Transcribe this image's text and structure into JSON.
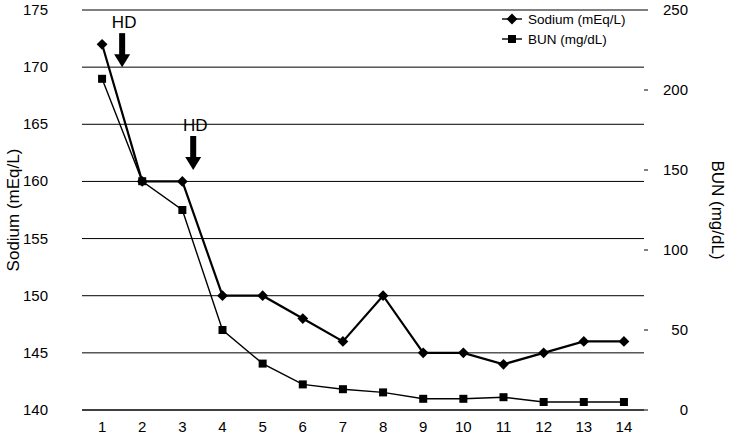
{
  "chart_data": {
    "type": "line",
    "categories": [
      "1",
      "2",
      "3",
      "4",
      "5",
      "6",
      "7",
      "8",
      "9",
      "10",
      "11",
      "12",
      "13",
      "14"
    ],
    "y_label": "Sodium (mEq/L)",
    "y2_label": "BUN (mg/dL)",
    "ylim": [
      140,
      175
    ],
    "yticks": [
      140,
      145,
      150,
      155,
      160,
      165,
      170,
      175
    ],
    "y2lim": [
      0,
      250
    ],
    "y2ticks": [
      0,
      50,
      100,
      150,
      200,
      250
    ],
    "grid": true,
    "legend": "upper right",
    "series": [
      {
        "name": "Sodium (mEq/L)",
        "color": "#000000",
        "marker": "diamond",
        "line_style": "solid",
        "values": [
          172,
          160,
          160,
          150,
          150,
          148,
          146,
          150,
          145,
          145,
          144,
          145,
          146,
          146
        ]
      },
      {
        "name": "BUN (mg/dL)",
        "color": "#000000",
        "marker": "square",
        "line_style": "solid",
        "axis": "y2",
        "values": [
          207,
          143,
          125,
          50,
          29,
          16,
          13,
          11,
          7,
          7,
          8,
          5,
          5,
          5
        ]
      }
    ],
    "annotations": [
      {
        "text": "HD",
        "x": 1.5,
        "y": 170
      },
      {
        "text": "HD",
        "x": 3.27,
        "y": 161
      }
    ]
  }
}
